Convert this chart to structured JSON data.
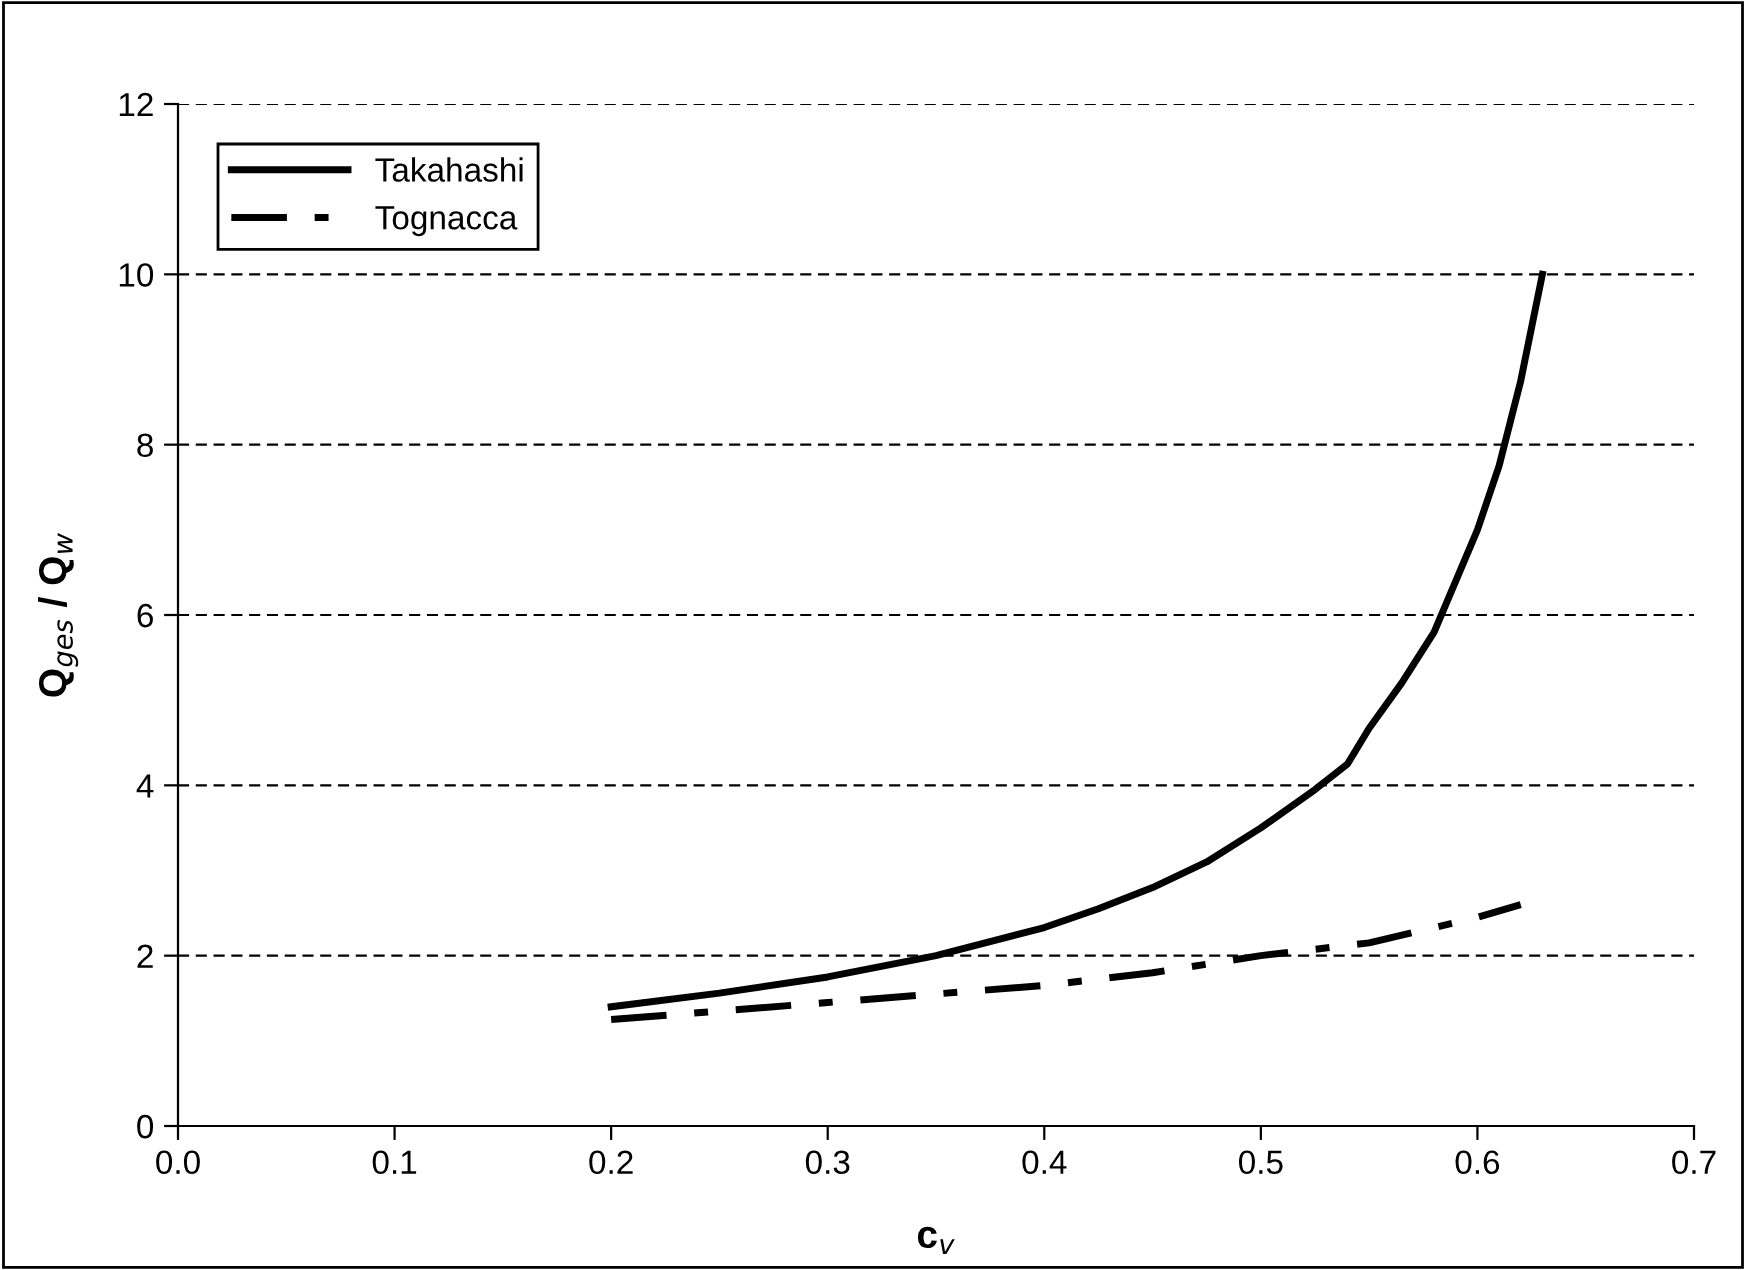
{
  "chart_data": {
    "type": "line",
    "xlabel": "c$_{v}$",
    "ylabel": "Q$_{ges}$ / Q$_{w}$",
    "series": [
      {
        "name": "Takahashi",
        "color": "#000000",
        "line_style": "solid",
        "x": [
          0.2,
          0.25,
          0.3,
          0.35,
          0.4,
          0.425,
          0.45,
          0.475,
          0.5,
          0.525,
          0.54,
          0.55,
          0.565,
          0.58,
          0.6,
          0.61,
          0.62,
          0.63
        ],
        "values": [
          1.4,
          1.56,
          1.75,
          2.0,
          2.33,
          2.55,
          2.8,
          3.1,
          3.5,
          3.95,
          4.25,
          4.67,
          5.2,
          5.8,
          7.0,
          7.75,
          8.75,
          10.0
        ]
      },
      {
        "name": "Tognacca",
        "color": "#000000",
        "line_style": "dashed",
        "x": [
          0.2,
          0.25,
          0.3,
          0.35,
          0.4,
          0.45,
          0.5,
          0.55,
          0.6,
          0.62
        ],
        "values": [
          1.25,
          1.35,
          1.45,
          1.55,
          1.65,
          1.8,
          2.0,
          2.15,
          2.45,
          2.6
        ]
      }
    ],
    "xlim": [
      0.0,
      0.7
    ],
    "xticks": [
      {
        "value": 0,
        "label": "0.0"
      },
      0.1,
      0.2,
      0.3,
      0.4,
      0.5,
      0.6,
      0.7
    ],
    "ylim": [
      0,
      12
    ],
    "yticks": [
      0,
      2,
      4,
      6,
      8,
      10,
      12
    ],
    "grid": "y",
    "legend": "top left",
    "marker": "none"
  }
}
